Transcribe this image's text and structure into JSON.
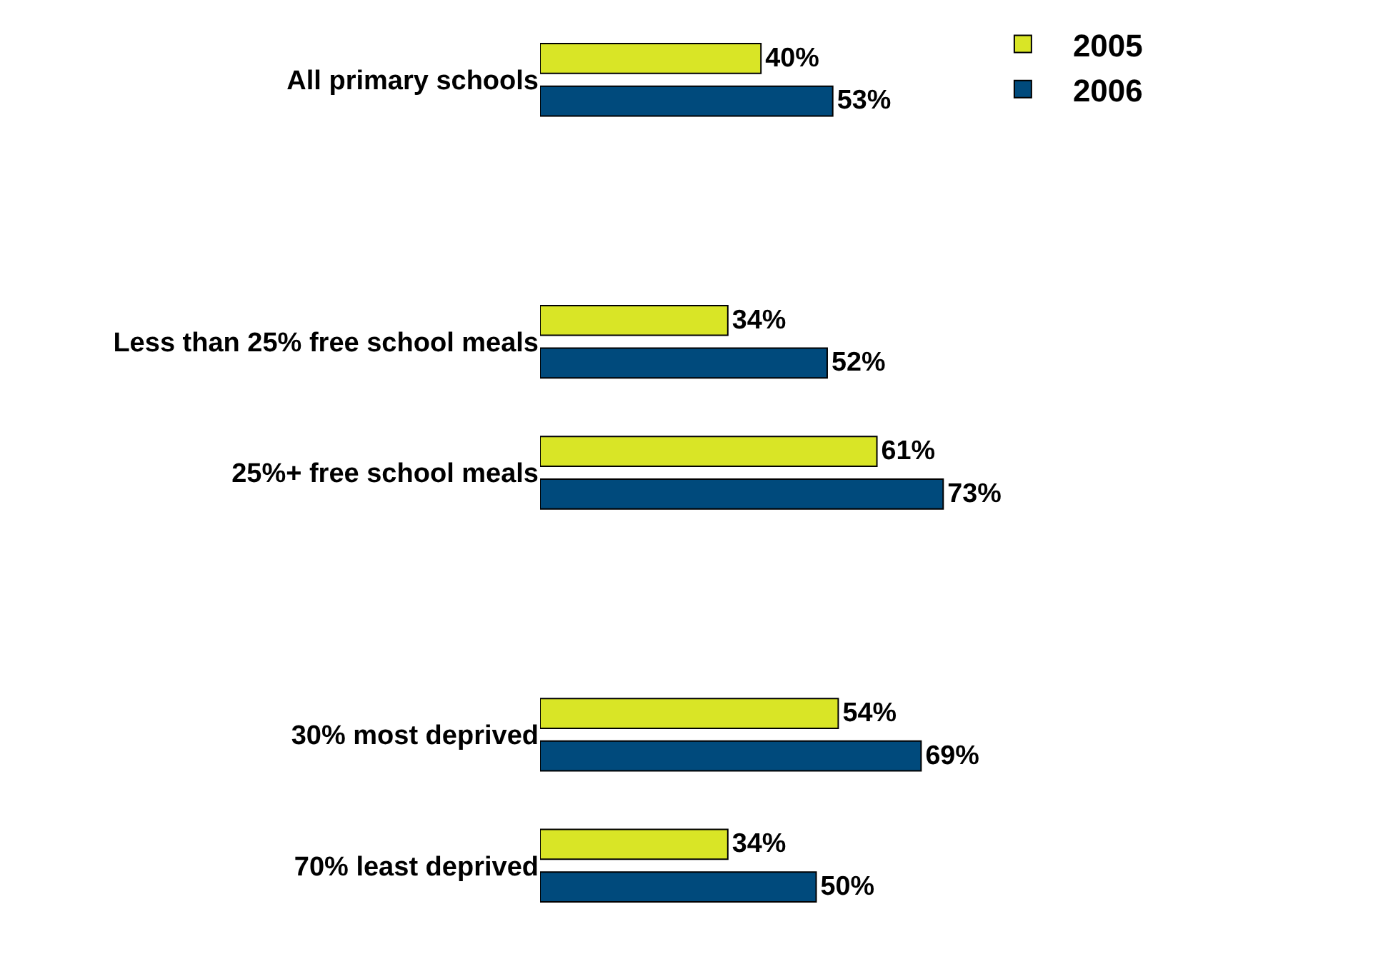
{
  "chart_data": {
    "type": "bar",
    "orientation": "horizontal",
    "categories": [
      "All primary schools",
      null,
      "Less than 25% free school meals",
      "25%+ free school meals",
      null,
      "30% most deprived",
      "70% least deprived"
    ],
    "series": [
      {
        "name": "2005",
        "color": "#d9e526",
        "values": [
          40,
          null,
          34,
          61,
          null,
          54,
          34
        ],
        "value_labels": [
          "40%",
          null,
          "34%",
          "61%",
          null,
          "54%",
          "34%"
        ]
      },
      {
        "name": "2006",
        "color": "#004a7c",
        "values": [
          53,
          null,
          52,
          73,
          null,
          69,
          50
        ],
        "value_labels": [
          "53%",
          null,
          "52%",
          "73%",
          null,
          "69%",
          "50%"
        ]
      }
    ],
    "legend": "top right"
  }
}
